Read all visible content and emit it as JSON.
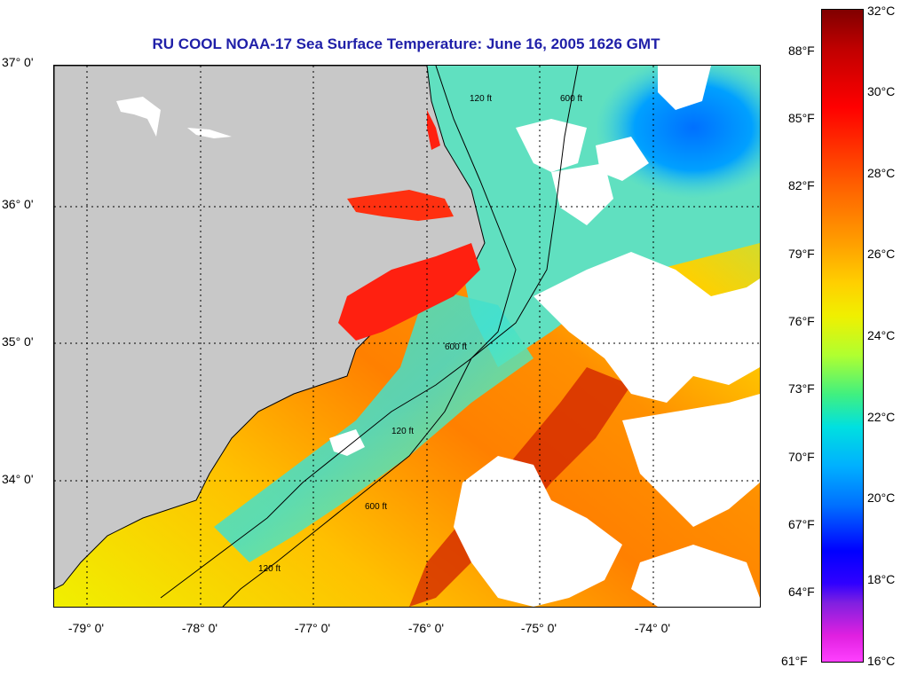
{
  "title": "RU COOL  NOAA-17  Sea Surface Temperature:  June 16, 2005 1626 GMT",
  "lat_labels": [
    "37° 0'",
    "36° 0'",
    "35° 0'",
    "34° 0'"
  ],
  "lon_labels": [
    "-79° 0'",
    "-78° 0'",
    "-77° 0'",
    "-76° 0'",
    "-75° 0'",
    "-74° 0'"
  ],
  "colorbar": {
    "celsius": [
      "32°C",
      "30°C",
      "28°C",
      "26°C",
      "24°C",
      "22°C",
      "20°C",
      "18°C",
      "16°C"
    ],
    "fahrenheit": [
      "88°F",
      "85°F",
      "82°F",
      "79°F",
      "76°F",
      "73°F",
      "70°F",
      "67°F",
      "64°F",
      "61°F"
    ]
  },
  "contour_labels": [
    "120 ft",
    "600 ft",
    "120 ft",
    "600 ft",
    "120 ft",
    "600 ft"
  ],
  "colors": {
    "land": "#c8c8c8",
    "cloud": "#ffffff",
    "title": "#1f1fa8",
    "warm": "#ff6000",
    "cool": "#00b0ff"
  }
}
